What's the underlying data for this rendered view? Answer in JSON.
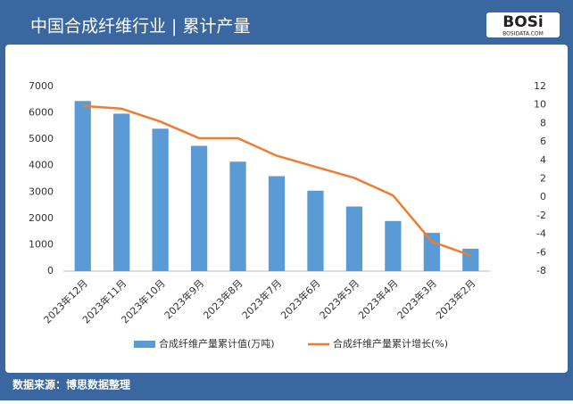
{
  "chart_data": {
    "type": "bar_line",
    "title": "中国合成纤维行业 | 累计产量",
    "categories": [
      "2023年12月",
      "2023年11月",
      "2023年10月",
      "2023年9月",
      "2023年8月",
      "2023年7月",
      "2023年6月",
      "2023年5月",
      "2023年4月",
      "2023年3月",
      "2023年2月"
    ],
    "series": [
      {
        "name": "合成纤维产量累计值(万吨)",
        "color": "#5b9bd5",
        "type": "bar",
        "values": [
          6450,
          5970,
          5400,
          4750,
          4150,
          3600,
          3050,
          2450,
          1900,
          1450,
          850
        ]
      },
      {
        "name": "合成纤维产量累计增长(%)",
        "color": "#ed7d31",
        "type": "line",
        "axis": "y2",
        "values": [
          9.9,
          9.6,
          8.2,
          6.4,
          6.4,
          4.5,
          3.3,
          2.1,
          0.2,
          -4.8,
          -6.3
        ]
      }
    ],
    "ylim": [
      0,
      7000
    ],
    "yticks": [
      0,
      1000,
      2000,
      3000,
      4000,
      5000,
      6000,
      7000
    ],
    "y2lim": [
      -8,
      12
    ],
    "y2ticks": [
      -8,
      -6,
      -4,
      -2,
      0,
      2,
      4,
      6,
      8,
      10,
      12
    ],
    "grid": false,
    "legend": "bottom",
    "source": "数据来源：博思数据整理"
  },
  "logo": {
    "text": "BOSi",
    "subtext": "BOSIDATA.COM"
  }
}
